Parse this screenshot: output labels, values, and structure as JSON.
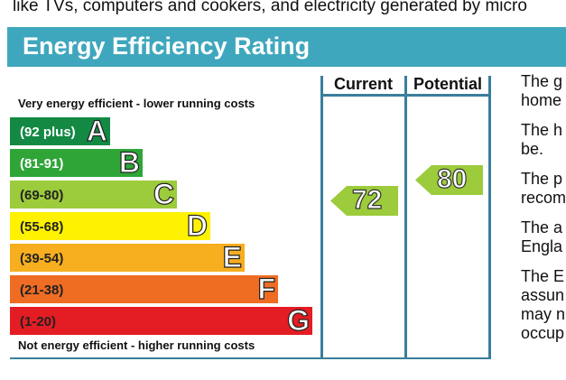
{
  "top_text": "like TVs, computers and cookers, and electricity generated by micro",
  "title": "Energy Efficiency Rating",
  "caption_top": "Very energy efficient - lower running costs",
  "caption_bottom": "Not energy efficient - higher running costs",
  "columns": {
    "current": "Current",
    "potential": "Potential"
  },
  "bands": [
    {
      "range": "(92 plus)",
      "letter": "A",
      "color": "#138944"
    },
    {
      "range": "(81-91)",
      "letter": "B",
      "color": "#2fa538"
    },
    {
      "range": "(69-80)",
      "letter": "C",
      "color": "#9ccb3b"
    },
    {
      "range": "(55-68)",
      "letter": "D",
      "color": "#fff200"
    },
    {
      "range": "(39-54)",
      "letter": "E",
      "color": "#f7ae1f"
    },
    {
      "range": "(21-38)",
      "letter": "F",
      "color": "#ef6c23"
    },
    {
      "range": "(1-20)",
      "letter": "G",
      "color": "#e31d23"
    }
  ],
  "current_rating": {
    "value": "72",
    "band": "C",
    "color": "#9ccb3b"
  },
  "potential_rating": {
    "value": "80",
    "band": "C",
    "color": "#9ccb3b"
  },
  "right_text": [
    [
      "The g",
      "home"
    ],
    [
      "The h",
      "be."
    ],
    [
      "The p",
      "recom"
    ],
    [
      "The a",
      "Engla"
    ],
    [
      "The E",
      "assun",
      "may n",
      "occup"
    ]
  ]
}
